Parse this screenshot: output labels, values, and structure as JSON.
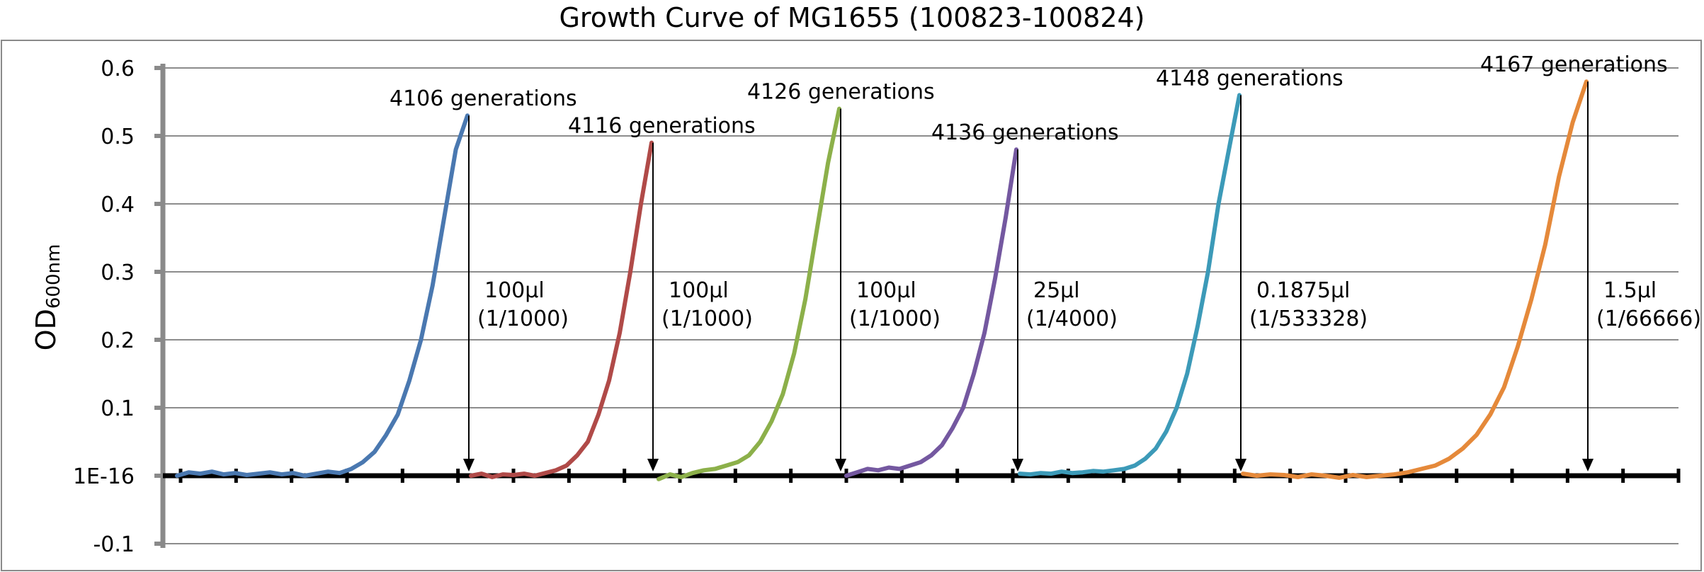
{
  "chart_data": {
    "type": "line",
    "title": "Growth Curve of MG1655 (100823-100824)",
    "ylabel": "OD",
    "ylabel_subscript": "600nm",
    "yticks": [
      "0.6",
      "0.5",
      "0.4",
      "0.3",
      "0.2",
      "0.1",
      "1E-16",
      "-0.1"
    ],
    "ylim": [
      -0.1,
      0.6
    ],
    "grid": true,
    "legend": "none",
    "series": [
      {
        "color": "#4a78b0",
        "values": [
          0.0,
          0.005,
          0.003,
          0.006,
          0.002,
          0.004,
          0.001,
          0.003,
          0.005,
          0.002,
          0.004,
          0.0,
          0.003,
          0.006,
          0.004,
          0.01,
          0.02,
          0.035,
          0.06,
          0.09,
          0.14,
          0.2,
          0.28,
          0.38,
          0.48,
          0.53
        ]
      },
      {
        "color": "#b04a48",
        "values": [
          0.0,
          0.003,
          -0.002,
          0.002,
          0.001,
          0.003,
          0.0,
          0.004,
          0.008,
          0.015,
          0.03,
          0.05,
          0.09,
          0.14,
          0.21,
          0.3,
          0.4,
          0.49
        ]
      },
      {
        "color": "#8cb04a",
        "values": [
          -0.005,
          0.002,
          -0.002,
          0.004,
          0.008,
          0.01,
          0.015,
          0.02,
          0.03,
          0.05,
          0.08,
          0.12,
          0.18,
          0.26,
          0.36,
          0.46,
          0.54
        ]
      },
      {
        "color": "#7458a0",
        "values": [
          0.0,
          0.005,
          0.01,
          0.008,
          0.012,
          0.01,
          0.015,
          0.02,
          0.03,
          0.045,
          0.07,
          0.1,
          0.15,
          0.21,
          0.29,
          0.38,
          0.48
        ]
      },
      {
        "color": "#3c9ab8",
        "values": [
          0.003,
          0.002,
          0.004,
          0.003,
          0.006,
          0.004,
          0.005,
          0.007,
          0.006,
          0.008,
          0.01,
          0.015,
          0.025,
          0.04,
          0.065,
          0.1,
          0.15,
          0.22,
          0.3,
          0.4,
          0.48,
          0.56
        ]
      },
      {
        "color": "#e5893a",
        "values": [
          0.003,
          0.0,
          0.002,
          0.001,
          -0.002,
          0.002,
          0.0,
          -0.003,
          0.001,
          -0.002,
          0.0,
          0.002,
          0.005,
          0.01,
          0.015,
          0.025,
          0.04,
          0.06,
          0.09,
          0.13,
          0.19,
          0.26,
          0.34,
          0.44,
          0.52,
          0.58
        ]
      }
    ],
    "annotations": [
      {
        "label": "4106 generations",
        "volume": "100μl",
        "dilution": "(1/1000)"
      },
      {
        "label": "4116 generations",
        "volume": "100μl",
        "dilution": "(1/1000)"
      },
      {
        "label": "4126 generations",
        "volume": "100μl",
        "dilution": "(1/1000)"
      },
      {
        "label": "4136 generations",
        "volume": "25μl",
        "dilution": "(1/4000)"
      },
      {
        "label": "4148 generations",
        "volume": "0.1875μl",
        "dilution": "(1/533328)"
      },
      {
        "label": "4167 generations",
        "volume": "1.5μl",
        "dilution": "(1/66666)"
      }
    ]
  }
}
